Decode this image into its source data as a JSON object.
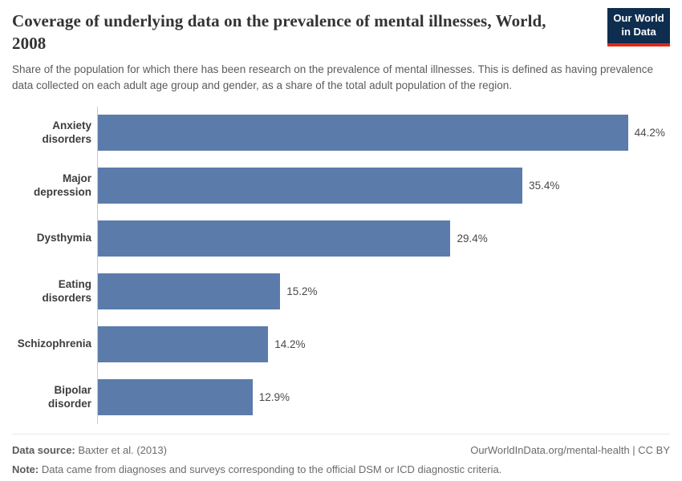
{
  "header": {
    "title": "Coverage of underlying data on the prevalence of mental illnesses, World, 2008",
    "subtitle": "Share of the population for which there has been research on the prevalence of mental illnesses. This is defined as having prevalence data collected on each adult age group and gender, as a share of the total adult population of the region.",
    "logo": {
      "line1": "Our World",
      "line2": "in Data",
      "bg_color": "#0f2e4f",
      "accent_color": "#e02818"
    }
  },
  "chart_data": {
    "type": "bar",
    "orientation": "horizontal",
    "title": "Coverage of underlying data on the prevalence of mental illnesses, World, 2008",
    "categories": [
      "Anxiety disorders",
      "Major depression",
      "Dysthymia",
      "Eating disorders",
      "Schizophrenia",
      "Bipolar disorder"
    ],
    "values": [
      44.2,
      35.4,
      29.4,
      15.2,
      14.2,
      12.9
    ],
    "value_labels": [
      "44.2%",
      "35.4%",
      "29.4%",
      "15.2%",
      "14.2%",
      "12.9%"
    ],
    "xlabel": "",
    "ylabel": "",
    "xlim": [
      0,
      47.7
    ],
    "grid": false,
    "legend": false,
    "bar_color": "#5b7cab",
    "axis_line_color": "#c9c9c9"
  },
  "footer": {
    "source_label": "Data source:",
    "source_value": " Baxter et al. (2013)",
    "right_text": "OurWorldInData.org/mental-health | CC BY",
    "note_label": "Note:",
    "note_value": " Data came from diagnoses and surveys corresponding to the official DSM or ICD diagnostic criteria."
  }
}
